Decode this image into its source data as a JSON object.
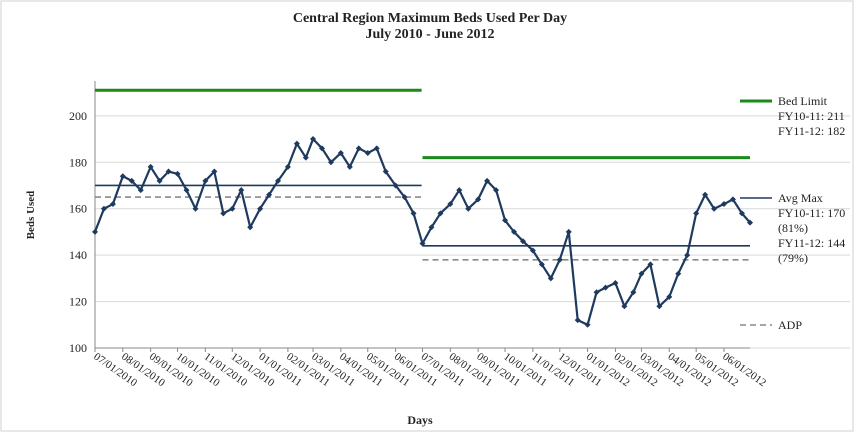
{
  "chart_data": {
    "type": "line",
    "title": "Central Region Maximum Beds Used Per Day",
    "subtitle": "July 2010 - June 2012",
    "xlabel": "Days",
    "ylabel": "Beds Used",
    "xlim": [
      "07/01/2010",
      "06/30/2012"
    ],
    "xticks": [
      "07/01/2010",
      "08/01/2010",
      "09/01/2010",
      "10/01/2010",
      "11/01/2010",
      "12/01/2010",
      "01/01/2011",
      "02/01/2011",
      "03/01/2011",
      "04/01/2011",
      "05/01/2011",
      "06/01/2011",
      "07/01/2011",
      "08/01/2011",
      "09/01/2011",
      "10/01/2011",
      "11/01/2011",
      "12/01/2011",
      "01/01/2012",
      "02/01/2012",
      "03/01/2012",
      "04/01/2012",
      "05/01/2012",
      "06/01/2012"
    ],
    "ylim": [
      100,
      215
    ],
    "yticks": [
      100,
      120,
      140,
      160,
      180,
      200
    ],
    "grid": true,
    "series": [
      {
        "color": "#1f3a5f",
        "x": [
          "07/01/2010",
          "07/11/2010",
          "07/21/2010",
          "08/01/2010",
          "08/11/2010",
          "08/21/2010",
          "09/01/2010",
          "09/11/2010",
          "09/21/2010",
          "10/01/2010",
          "10/11/2010",
          "10/21/2010",
          "11/01/2010",
          "11/11/2010",
          "11/21/2010",
          "12/01/2010",
          "12/11/2010",
          "12/21/2010",
          "01/01/2011",
          "01/11/2011",
          "01/21/2011",
          "02/01/2011",
          "02/11/2011",
          "02/21/2011",
          "03/01/2011",
          "03/11/2011",
          "03/21/2011",
          "04/01/2011",
          "04/11/2011",
          "04/21/2011",
          "05/01/2011",
          "05/11/2011",
          "05/21/2011",
          "06/01/2011",
          "06/11/2011",
          "06/21/2011",
          "07/01/2011",
          "07/11/2011",
          "07/21/2011",
          "08/01/2011",
          "08/11/2011",
          "08/21/2011",
          "09/01/2011",
          "09/11/2011",
          "09/21/2011",
          "10/01/2011",
          "10/11/2011",
          "10/21/2011",
          "11/01/2011",
          "11/11/2011",
          "11/21/2011",
          "12/01/2011",
          "12/11/2011",
          "12/21/2011",
          "01/01/2012",
          "01/11/2012",
          "01/21/2012",
          "02/01/2012",
          "02/11/2012",
          "02/21/2012",
          "03/01/2012",
          "03/11/2012",
          "03/21/2012",
          "04/01/2012",
          "04/11/2012",
          "04/21/2012",
          "05/01/2012",
          "05/11/2012",
          "05/21/2012",
          "06/01/2012",
          "06/11/2012",
          "06/21/2012",
          "06/30/2012"
        ],
        "values": [
          150,
          160,
          162,
          174,
          172,
          168,
          178,
          172,
          176,
          175,
          168,
          160,
          172,
          176,
          158,
          160,
          168,
          152,
          160,
          166,
          172,
          178,
          188,
          182,
          190,
          186,
          180,
          184,
          178,
          186,
          184,
          186,
          176,
          170,
          165,
          158,
          145,
          152,
          158,
          162,
          168,
          160,
          164,
          172,
          168,
          155,
          150,
          146,
          142,
          136,
          130,
          138,
          150,
          112,
          110,
          124,
          126,
          128,
          118,
          124,
          132,
          136,
          118,
          122,
          132,
          140,
          158,
          166,
          160,
          162,
          164,
          158,
          154
        ]
      }
    ],
    "ref_lines": [
      {
        "name": "Bed Limit",
        "color": "#1a8a1a",
        "dash": false,
        "segments": [
          {
            "start": "07/01/2010",
            "end": "06/30/2011",
            "value": 211,
            "label": "FY10-11: 211"
          },
          {
            "start": "07/01/2011",
            "end": "06/30/2012",
            "value": 182,
            "label": "FY11-12: 182"
          }
        ]
      },
      {
        "name": "Avg Max",
        "color": "#1f3a5f",
        "dash": false,
        "segments": [
          {
            "start": "07/01/2010",
            "end": "06/30/2011",
            "value": 170,
            "label": "FY10-11: 170",
            "note": "(81%)"
          },
          {
            "start": "07/01/2011",
            "end": "06/30/2012",
            "value": 144,
            "label": "FY11-12: 144",
            "note": "(79%)"
          }
        ]
      },
      {
        "name": "ADP",
        "color": "#888888",
        "dash": true,
        "segments": [
          {
            "start": "07/01/2010",
            "end": "06/30/2011",
            "value": 165
          },
          {
            "start": "07/01/2011",
            "end": "06/30/2012",
            "value": 138
          }
        ]
      }
    ]
  }
}
